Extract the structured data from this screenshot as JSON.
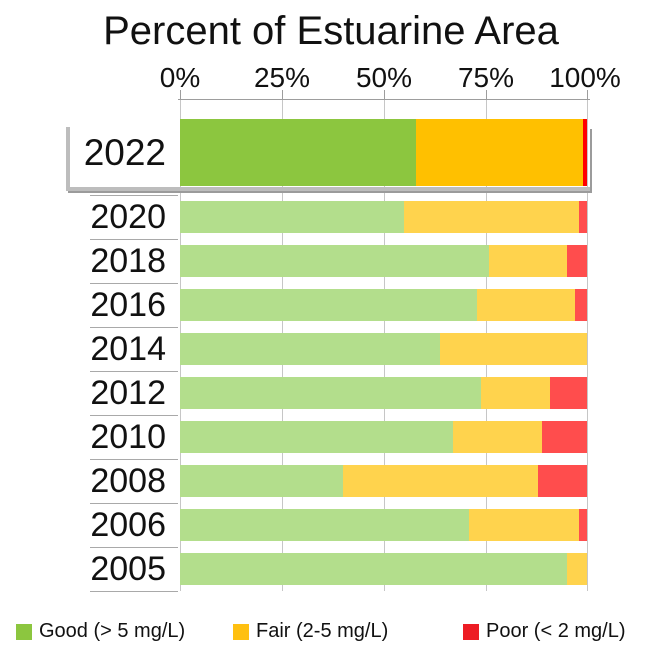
{
  "chart_data": {
    "type": "bar",
    "orientation": "horizontal",
    "stacked": true,
    "title": "Percent of Estuarine Area",
    "x_tick_labels": [
      "0%",
      "25%",
      "50%",
      "75%",
      "100%"
    ],
    "x_range": [
      0,
      100
    ],
    "grid": true,
    "axis_position": "top",
    "categories": [
      "2022",
      "2020",
      "2018",
      "2016",
      "2014",
      "2012",
      "2010",
      "2008",
      "2006",
      "2005"
    ],
    "highlighted_category": "2022",
    "series": [
      {
        "name": "Good (> 5 mg/L)",
        "values": [
          58,
          55,
          76,
          73,
          64,
          74,
          67,
          40,
          71,
          95
        ]
      },
      {
        "name": "Fair (2-5 mg/L)",
        "values": [
          41,
          43,
          19,
          24,
          36,
          17,
          22,
          48,
          27,
          5
        ]
      },
      {
        "name": "Poor (< 2 mg/L)",
        "values": [
          1,
          2,
          5,
          3,
          0,
          9,
          11,
          12,
          2,
          0
        ]
      }
    ],
    "colors": {
      "good": "#B3DE8C",
      "fair": "#FFD34D",
      "poor": "#FF4D4D"
    },
    "highlight_colors": {
      "good": "#8CC63F",
      "fair": "#FFC000",
      "poor": "#FF0000"
    },
    "legend_position": "bottom",
    "legend": [
      {
        "label": "Good (> 5 mg/L)",
        "color": "#8CC63F"
      },
      {
        "label": "Fair (2-5 mg/L)",
        "color": "#FFC010"
      },
      {
        "label": "Poor (< 2 mg/L)",
        "color": "#ED1C24"
      }
    ]
  }
}
